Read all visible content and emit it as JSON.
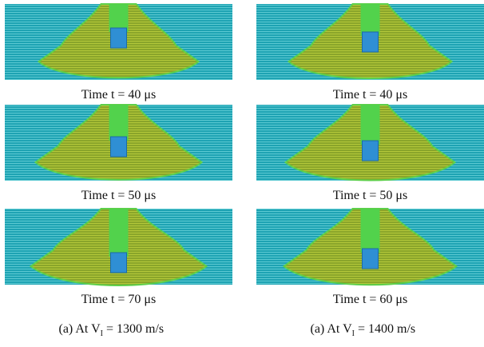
{
  "columns": [
    {
      "panels": [
        {
          "caption": "Time t = 40 μs"
        },
        {
          "caption": "Time t = 50 μs"
        },
        {
          "caption": "Time t = 70 μs"
        }
      ],
      "caption": {
        "prefix": "(a)  At V",
        "sub": "I",
        "suffix": " = 1300 m/s"
      }
    },
    {
      "panels": [
        {
          "caption": "Time t = 40 μs"
        },
        {
          "caption": "Time t = 50 μs"
        },
        {
          "caption": "Time t = 60 μs"
        }
      ],
      "caption": {
        "prefix": "(a)  At V",
        "sub": "I",
        "suffix": " = 1400 m/s"
      }
    }
  ]
}
